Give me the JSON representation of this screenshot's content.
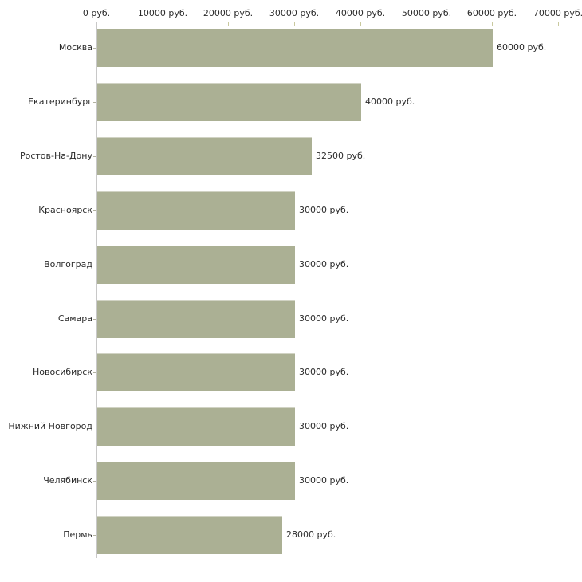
{
  "chart_data": {
    "type": "bar",
    "orientation": "horizontal",
    "categories": [
      "Москва",
      "Екатеринбург",
      "Ростов-На-Дону",
      "Красноярск",
      "Волгоград",
      "Самара",
      "Новосибирск",
      "Нижний Новгород",
      "Челябинск",
      "Пермь"
    ],
    "values": [
      60000,
      40000,
      32500,
      30000,
      30000,
      30000,
      30000,
      30000,
      30000,
      28000
    ],
    "value_labels": [
      "60000 руб.",
      "40000 руб.",
      "32500 руб.",
      "30000 руб.",
      "30000 руб.",
      "30000 руб.",
      "30000 руб.",
      "30000 руб.",
      "30000 руб.",
      "28000 руб."
    ],
    "x_tick_values": [
      0,
      10000,
      20000,
      30000,
      40000,
      50000,
      60000,
      70000
    ],
    "x_tick_labels": [
      "0 руб.",
      "10000 руб.",
      "20000 руб.",
      "30000 руб.",
      "40000 руб.",
      "50000 руб.",
      "60000 руб.",
      "70000 руб."
    ],
    "xlim": [
      0,
      70000
    ],
    "unit": "руб.",
    "grid": false,
    "legend": false,
    "axis_position": "top",
    "colors": {
      "bar": "#abb094",
      "axis": "#c8c8c8",
      "x_tick": "#c9c99e",
      "category_tick": "#b1b1a0",
      "text": "#2b2b2b",
      "background": "#ffffff"
    }
  }
}
